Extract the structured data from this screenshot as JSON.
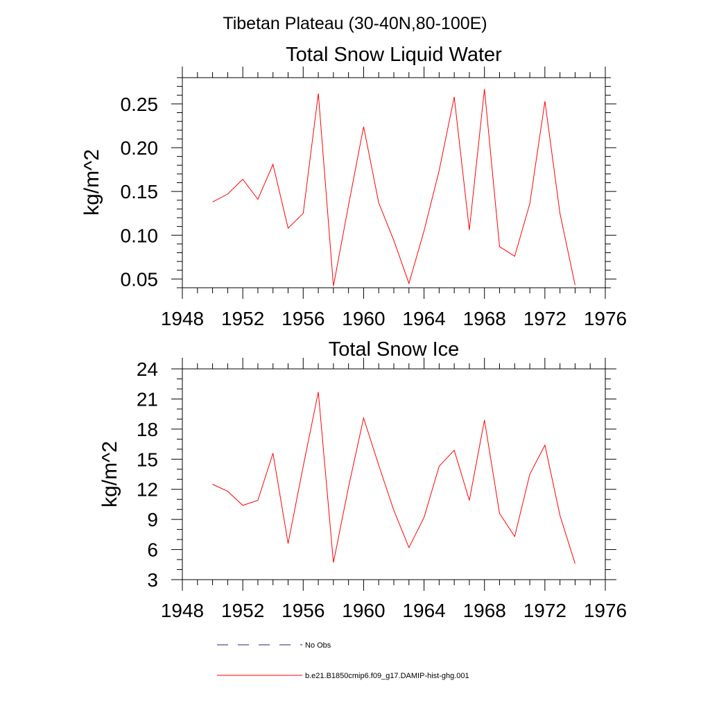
{
  "figure": {
    "main_title": "Tibetan Plateau (30-40N,80-100E)"
  },
  "chart_data": [
    {
      "type": "line",
      "title": "Total Snow Liquid Water",
      "xlabel": "",
      "ylabel": "kg/m^2",
      "xlim": [
        1948,
        1976
      ],
      "ylim": [
        0.04,
        0.28
      ],
      "xticks": [
        1948,
        1952,
        1956,
        1960,
        1964,
        1968,
        1972,
        1976
      ],
      "xtick_labels": [
        "1948",
        "1952",
        "1956",
        "1960",
        "1964",
        "1968",
        "1972",
        "1976"
      ],
      "yticks": [
        0.05,
        0.1,
        0.15,
        0.2,
        0.25
      ],
      "ytick_labels": [
        "0.05",
        "0.10",
        "0.15",
        "0.20",
        "0.25"
      ],
      "x": [
        1950,
        1951,
        1952,
        1953,
        1954,
        1955,
        1956,
        1957,
        1958,
        1959,
        1960,
        1961,
        1962,
        1963,
        1964,
        1965,
        1966,
        1967,
        1968,
        1969,
        1970,
        1971,
        1972,
        1973,
        1974
      ],
      "series": [
        {
          "name": "b.e21.B1850cmip6.f09_g17.DAMIP-hist-ghg.001",
          "color": "#ff0000",
          "values": [
            0.138,
            0.147,
            0.164,
            0.141,
            0.181,
            0.108,
            0.125,
            0.262,
            0.042,
            0.134,
            0.224,
            0.137,
            0.094,
            0.045,
            0.105,
            0.174,
            0.258,
            0.106,
            0.267,
            0.087,
            0.076,
            0.136,
            0.253,
            0.125,
            0.043
          ]
        }
      ],
      "grid": false
    },
    {
      "type": "line",
      "title": "Total Snow Ice",
      "xlabel": "",
      "ylabel": "kg/m^2",
      "xlim": [
        1948,
        1976
      ],
      "ylim": [
        3,
        24
      ],
      "xticks": [
        1948,
        1952,
        1956,
        1960,
        1964,
        1968,
        1972,
        1976
      ],
      "xtick_labels": [
        "1948",
        "1952",
        "1956",
        "1960",
        "1964",
        "1968",
        "1972",
        "1976"
      ],
      "yticks": [
        3,
        6,
        9,
        12,
        15,
        18,
        21,
        24
      ],
      "ytick_labels": [
        "3",
        "6",
        "9",
        "12",
        "15",
        "18",
        "21",
        "24"
      ],
      "x": [
        1950,
        1951,
        1952,
        1953,
        1954,
        1955,
        1956,
        1957,
        1958,
        1959,
        1960,
        1961,
        1962,
        1963,
        1964,
        1965,
        1966,
        1967,
        1968,
        1969,
        1970,
        1971,
        1972,
        1973,
        1974
      ],
      "series": [
        {
          "name": "b.e21.B1850cmip6.f09_g17.DAMIP-hist-ghg.001",
          "color": "#ff0000",
          "values": [
            12.5,
            11.8,
            10.4,
            10.9,
            15.6,
            6.6,
            14.3,
            21.7,
            4.7,
            12.2,
            19.1,
            14.4,
            9.9,
            6.2,
            9.2,
            14.3,
            15.9,
            10.9,
            18.9,
            9.6,
            7.3,
            13.5,
            16.4,
            9.4,
            4.6
          ]
        }
      ],
      "grid": false
    }
  ],
  "legend": {
    "placement": "bottom-center",
    "items": [
      {
        "label": "No Obs",
        "color": "#1a237e",
        "style": "dashed"
      },
      {
        "label": "b.e21.B1850cmip6.f09_g17.DAMIP-hist-ghg.001",
        "color": "#ff0000",
        "style": "solid"
      }
    ]
  }
}
